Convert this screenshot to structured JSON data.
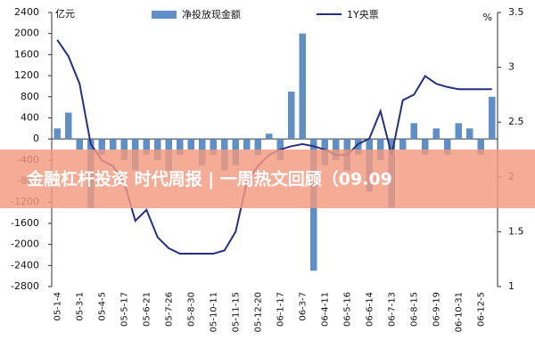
{
  "chart_data": {
    "type": "bar-line",
    "left_unit": "亿元",
    "right_unit": "%",
    "banner": "金融杠杆投资 时代周报 | 一周热文回顾（09.09",
    "categories": [
      "05-1-4",
      null,
      "05-3-1",
      null,
      "05-4-5",
      null,
      "05-5-17",
      null,
      "05-6-21",
      null,
      "05-7-26",
      null,
      "05-8-30",
      null,
      "05-10-11",
      null,
      "05-11-15",
      null,
      "05-12-20",
      null,
      "06-1-17",
      null,
      "06-3-7",
      null,
      "06-4-11",
      null,
      "06-5-16",
      null,
      "06-6-14",
      null,
      "06-7-13",
      null,
      "06-8-15",
      null,
      "06-9-19",
      null,
      "06-10-31",
      null,
      "06-12-5",
      null
    ],
    "series": [
      {
        "name": "净投放现金额",
        "color": "#5f8fc4",
        "type": "bar",
        "values": [
          200,
          500,
          -200,
          -1300,
          -300,
          -200,
          -400,
          -600,
          -300,
          -400,
          -600,
          -300,
          -200,
          -500,
          -300,
          -600,
          -500,
          -200,
          -300,
          100,
          -400,
          900,
          2000,
          -2500,
          -500,
          -400,
          -600,
          -300,
          -1000,
          -400,
          -1300,
          -200,
          300,
          -300,
          200,
          -300,
          300,
          200,
          -300,
          800
        ]
      },
      {
        "name": "1Y央票",
        "color": "#27307f",
        "type": "line",
        "axis": "y2",
        "values": [
          3.25,
          3.1,
          2.85,
          2.3,
          2.15,
          2.1,
          1.95,
          1.6,
          1.7,
          1.45,
          1.35,
          1.3,
          1.3,
          1.3,
          1.3,
          1.33,
          1.5,
          1.95,
          2.1,
          2.2,
          2.25,
          2.28,
          2.3,
          2.28,
          2.25,
          2.2,
          2.2,
          2.3,
          2.35,
          2.6,
          2.2,
          2.7,
          2.75,
          2.92,
          2.85,
          2.82,
          2.8,
          2.8,
          2.8,
          2.8
        ]
      }
    ],
    "ylim": [
      -2800,
      2400
    ],
    "yticks": [
      -2800,
      -2400,
      -2000,
      -1600,
      -1200,
      -800,
      -400,
      0,
      400,
      800,
      1200,
      1600,
      2000,
      2400
    ],
    "y2lim": [
      1,
      3.5
    ],
    "y2ticks": [
      1,
      1.5,
      2,
      2.5,
      3,
      3.5
    ]
  }
}
